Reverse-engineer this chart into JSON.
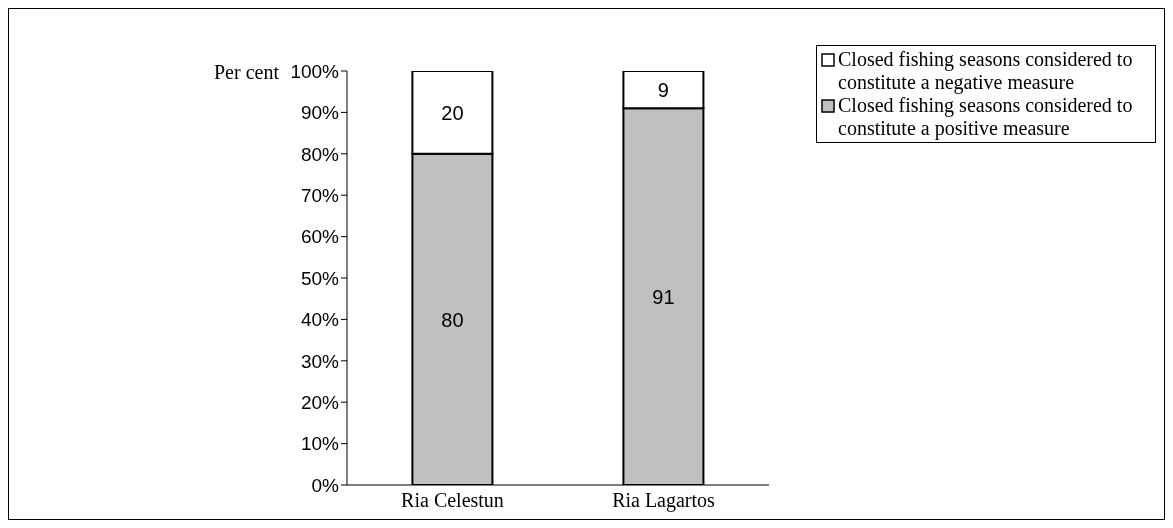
{
  "chart_data": {
    "type": "bar",
    "stacked": true,
    "ylabel": "Per cent",
    "categories": [
      "Ria Celestun",
      "Ria Lagartos"
    ],
    "series": [
      {
        "name": "Closed fishing seasons considered to constitute a positive measure",
        "color": "#c0c0c0",
        "values": [
          80,
          91
        ]
      },
      {
        "name": "Closed fishing seasons considered to constitute a negative measure",
        "color": "#ffffff",
        "values": [
          20,
          9
        ]
      }
    ],
    "ylim": [
      0,
      100
    ],
    "yticks": [
      {
        "value": 0,
        "label": "0%"
      },
      {
        "value": 10,
        "label": "10%"
      },
      {
        "value": 20,
        "label": "20%"
      },
      {
        "value": 30,
        "label": "30%"
      },
      {
        "value": 40,
        "label": "40%"
      },
      {
        "value": 50,
        "label": "50%"
      },
      {
        "value": 60,
        "label": "60%"
      },
      {
        "value": 70,
        "label": "70%"
      },
      {
        "value": 80,
        "label": "80%"
      },
      {
        "value": 90,
        "label": "90%"
      },
      {
        "value": 100,
        "label": "100%"
      }
    ],
    "data_labels": true,
    "grid": false,
    "legend": "top right"
  }
}
